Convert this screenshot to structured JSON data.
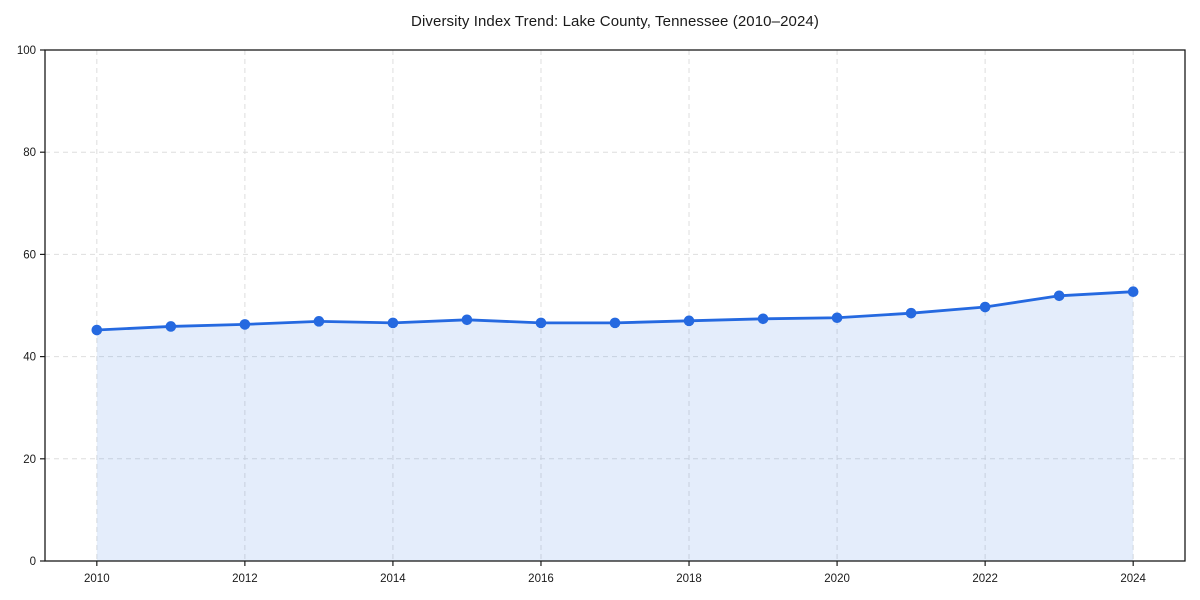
{
  "chart": {
    "title": "Diversity Index Trend: Lake County, Tennessee (2010–2024)"
  },
  "chart_data": {
    "type": "line",
    "title": "Diversity Index Trend: Lake County, Tennessee (2010–2024)",
    "x": [
      2010,
      2011,
      2012,
      2013,
      2014,
      2015,
      2016,
      2017,
      2018,
      2019,
      2020,
      2021,
      2022,
      2023,
      2024
    ],
    "values": [
      45.2,
      45.9,
      46.3,
      46.9,
      46.6,
      47.2,
      46.6,
      46.6,
      47.0,
      47.4,
      47.6,
      48.5,
      49.7,
      51.9,
      52.7
    ],
    "xlabel": "",
    "ylabel": "",
    "xlim": [
      2009.3,
      2024.7
    ],
    "ylim": [
      0,
      100
    ],
    "xticks": [
      2010,
      2012,
      2014,
      2016,
      2018,
      2020,
      2022,
      2024
    ],
    "yticks": [
      0,
      20,
      40,
      60,
      80,
      100
    ],
    "grid": true,
    "grid_style": "dashed",
    "grid_color": "#dedede",
    "line_color": "#2569e0",
    "marker": "circle",
    "fill_under_line": true,
    "fill_color": "rgba(37, 105, 224, 0.12)",
    "axis_color": "#1a1a1a",
    "legend": "none"
  }
}
